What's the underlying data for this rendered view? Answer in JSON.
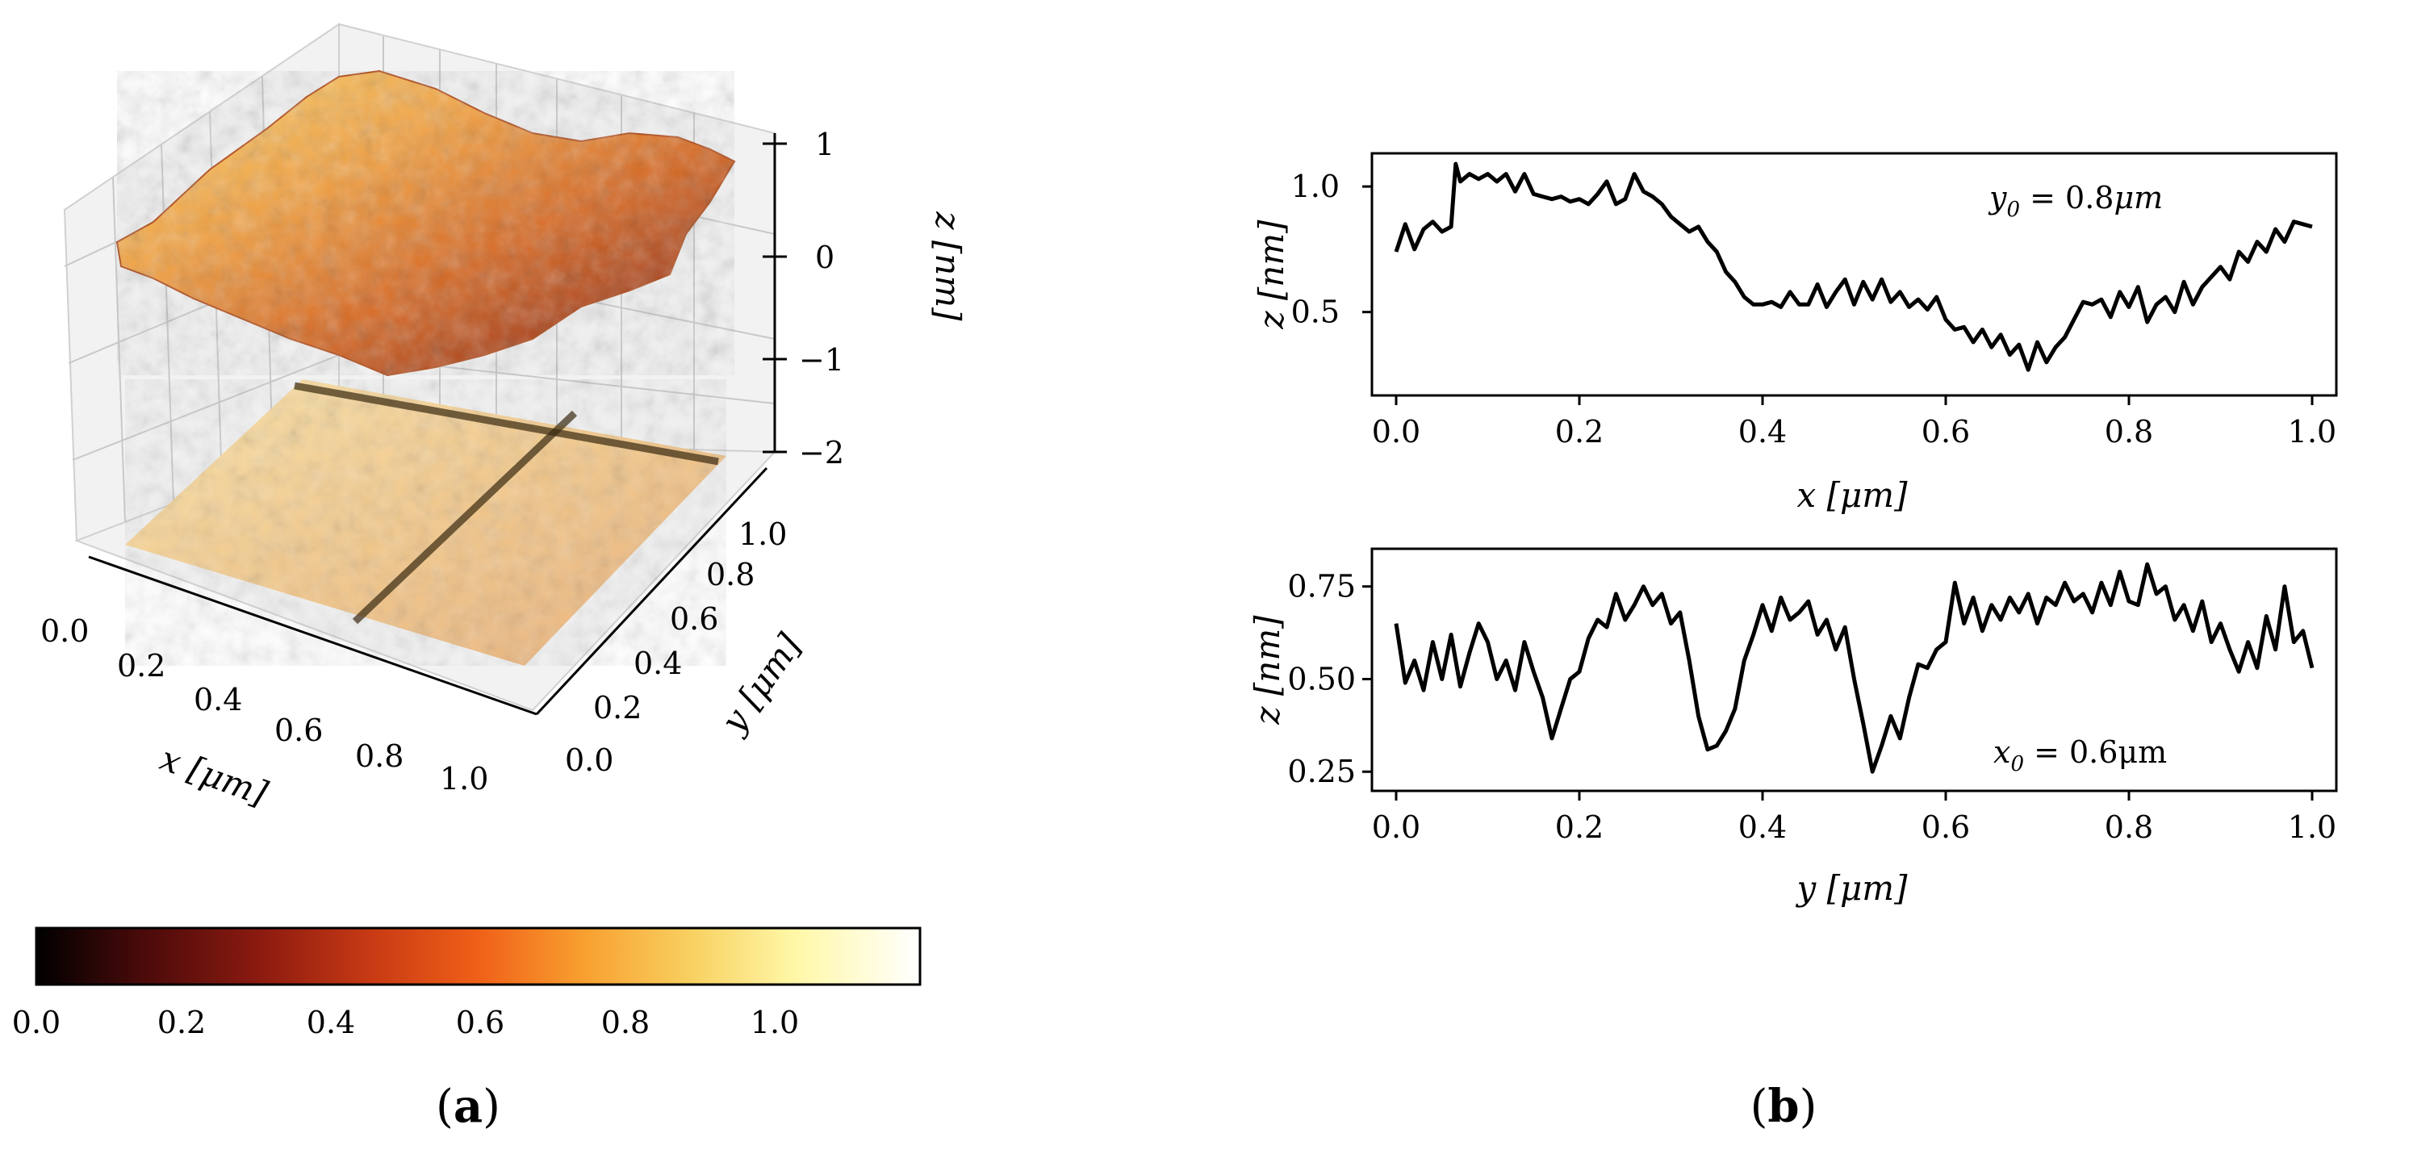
{
  "colorbar": {
    "stops": [
      "#000000",
      "#4a0a0a",
      "#8a1a10",
      "#c83a14",
      "#f06018",
      "#f8a030",
      "#f8d060",
      "#fff8a8",
      "#ffffff"
    ],
    "ticks": [
      "0.0",
      "0.2",
      "0.4",
      "0.6",
      "0.8",
      "1.0"
    ]
  },
  "chart_data": [
    {
      "type": "surface3d",
      "xlabel": "x [μm]",
      "ylabel": "y [μm]",
      "zlabel": "z [nm]",
      "x_ticks": [
        "0.0",
        "0.2",
        "0.4",
        "0.6",
        "0.8",
        "1.0"
      ],
      "y_ticks": [
        "0.0",
        "0.2",
        "0.4",
        "0.6",
        "0.8",
        "1.0"
      ],
      "z_ticks": [
        "1",
        "0",
        "−1",
        "−2"
      ],
      "zlim": [
        -2,
        1
      ],
      "colormap": "afmhot",
      "cut_lines": {
        "y0": 0.8,
        "x0": 0.6
      },
      "panel_label": "a"
    },
    {
      "type": "line",
      "xlabel": "x [μm]",
      "ylabel": "z [nm]",
      "annotation": "y0 = 0.8μm",
      "xlim": [
        0.0,
        1.0
      ],
      "ylim": [
        0.2,
        1.1
      ],
      "x_ticks": [
        "0.0",
        "0.2",
        "0.4",
        "0.6",
        "0.8",
        "1.0"
      ],
      "y_ticks": [
        "1.0",
        "0.5"
      ],
      "x": [
        0.0,
        0.01,
        0.02,
        0.03,
        0.04,
        0.05,
        0.06,
        0.065,
        0.07,
        0.08,
        0.09,
        0.1,
        0.11,
        0.12,
        0.13,
        0.14,
        0.15,
        0.16,
        0.17,
        0.18,
        0.19,
        0.2,
        0.21,
        0.22,
        0.23,
        0.24,
        0.25,
        0.26,
        0.27,
        0.28,
        0.29,
        0.3,
        0.31,
        0.32,
        0.33,
        0.34,
        0.35,
        0.36,
        0.37,
        0.38,
        0.39,
        0.4,
        0.41,
        0.42,
        0.43,
        0.44,
        0.45,
        0.46,
        0.47,
        0.48,
        0.49,
        0.5,
        0.51,
        0.52,
        0.53,
        0.54,
        0.55,
        0.56,
        0.57,
        0.58,
        0.59,
        0.6,
        0.61,
        0.62,
        0.63,
        0.64,
        0.65,
        0.66,
        0.67,
        0.68,
        0.69,
        0.7,
        0.71,
        0.72,
        0.73,
        0.74,
        0.75,
        0.76,
        0.77,
        0.78,
        0.79,
        0.8,
        0.81,
        0.82,
        0.83,
        0.84,
        0.85,
        0.86,
        0.87,
        0.88,
        0.89,
        0.9,
        0.91,
        0.92,
        0.93,
        0.94,
        0.95,
        0.96,
        0.97,
        0.98,
        0.99,
        1.0
      ],
      "y": [
        0.74,
        0.85,
        0.75,
        0.83,
        0.86,
        0.82,
        0.84,
        1.09,
        1.02,
        1.05,
        1.03,
        1.05,
        1.02,
        1.05,
        0.98,
        1.05,
        0.97,
        0.96,
        0.95,
        0.96,
        0.94,
        0.95,
        0.93,
        0.97,
        1.02,
        0.93,
        0.95,
        1.05,
        0.98,
        0.96,
        0.93,
        0.88,
        0.85,
        0.82,
        0.84,
        0.78,
        0.74,
        0.66,
        0.62,
        0.56,
        0.53,
        0.53,
        0.54,
        0.52,
        0.58,
        0.53,
        0.53,
        0.61,
        0.52,
        0.58,
        0.63,
        0.53,
        0.62,
        0.55,
        0.63,
        0.54,
        0.58,
        0.52,
        0.55,
        0.51,
        0.56,
        0.47,
        0.43,
        0.44,
        0.38,
        0.43,
        0.36,
        0.41,
        0.33,
        0.37,
        0.27,
        0.38,
        0.3,
        0.36,
        0.4,
        0.47,
        0.54,
        0.53,
        0.55,
        0.48,
        0.58,
        0.52,
        0.6,
        0.46,
        0.53,
        0.56,
        0.5,
        0.62,
        0.53,
        0.6,
        0.64,
        0.68,
        0.63,
        0.74,
        0.7,
        0.78,
        0.74,
        0.83,
        0.78,
        0.86,
        0.85,
        0.84
      ]
    },
    {
      "type": "line",
      "xlabel": "y [μm]",
      "ylabel": "z [nm]",
      "annotation": "x0 = 0.6μm",
      "xlim": [
        0.0,
        1.0
      ],
      "ylim": [
        0.22,
        0.83
      ],
      "x_ticks": [
        "0.0",
        "0.2",
        "0.4",
        "0.6",
        "0.8",
        "1.0"
      ],
      "y_ticks": [
        "0.75",
        "0.50",
        "0.25"
      ],
      "x": [
        0.0,
        0.01,
        0.02,
        0.03,
        0.04,
        0.05,
        0.06,
        0.07,
        0.08,
        0.09,
        0.1,
        0.11,
        0.12,
        0.13,
        0.14,
        0.15,
        0.16,
        0.17,
        0.18,
        0.19,
        0.2,
        0.21,
        0.22,
        0.23,
        0.24,
        0.25,
        0.26,
        0.27,
        0.28,
        0.29,
        0.3,
        0.31,
        0.32,
        0.33,
        0.34,
        0.35,
        0.36,
        0.37,
        0.38,
        0.39,
        0.4,
        0.41,
        0.42,
        0.43,
        0.44,
        0.45,
        0.46,
        0.47,
        0.48,
        0.49,
        0.5,
        0.51,
        0.52,
        0.53,
        0.54,
        0.55,
        0.56,
        0.57,
        0.58,
        0.59,
        0.6,
        0.61,
        0.62,
        0.63,
        0.64,
        0.65,
        0.66,
        0.67,
        0.68,
        0.69,
        0.7,
        0.71,
        0.72,
        0.73,
        0.74,
        0.75,
        0.76,
        0.77,
        0.78,
        0.79,
        0.8,
        0.81,
        0.82,
        0.83,
        0.84,
        0.85,
        0.86,
        0.87,
        0.88,
        0.89,
        0.9,
        0.91,
        0.92,
        0.93,
        0.94,
        0.95,
        0.96,
        0.97,
        0.98,
        0.99,
        1.0
      ],
      "y": [
        0.65,
        0.49,
        0.55,
        0.47,
        0.6,
        0.5,
        0.62,
        0.48,
        0.57,
        0.65,
        0.6,
        0.5,
        0.55,
        0.47,
        0.6,
        0.52,
        0.45,
        0.34,
        0.42,
        0.5,
        0.52,
        0.61,
        0.66,
        0.64,
        0.73,
        0.66,
        0.7,
        0.75,
        0.7,
        0.73,
        0.65,
        0.68,
        0.55,
        0.4,
        0.31,
        0.32,
        0.36,
        0.42,
        0.55,
        0.62,
        0.7,
        0.63,
        0.72,
        0.66,
        0.68,
        0.71,
        0.62,
        0.66,
        0.58,
        0.64,
        0.5,
        0.38,
        0.25,
        0.32,
        0.4,
        0.34,
        0.45,
        0.54,
        0.53,
        0.58,
        0.6,
        0.76,
        0.65,
        0.72,
        0.63,
        0.7,
        0.66,
        0.72,
        0.68,
        0.73,
        0.65,
        0.72,
        0.7,
        0.76,
        0.71,
        0.73,
        0.68,
        0.76,
        0.7,
        0.79,
        0.71,
        0.7,
        0.81,
        0.73,
        0.75,
        0.66,
        0.7,
        0.63,
        0.71,
        0.6,
        0.65,
        0.58,
        0.52,
        0.6,
        0.53,
        0.67,
        0.58,
        0.75,
        0.6,
        0.63,
        0.53
      ]
    }
  ],
  "panel_labels": [
    "(a)",
    "(b)"
  ],
  "panel_label_parts": {
    "a": "a",
    "b": "b"
  }
}
